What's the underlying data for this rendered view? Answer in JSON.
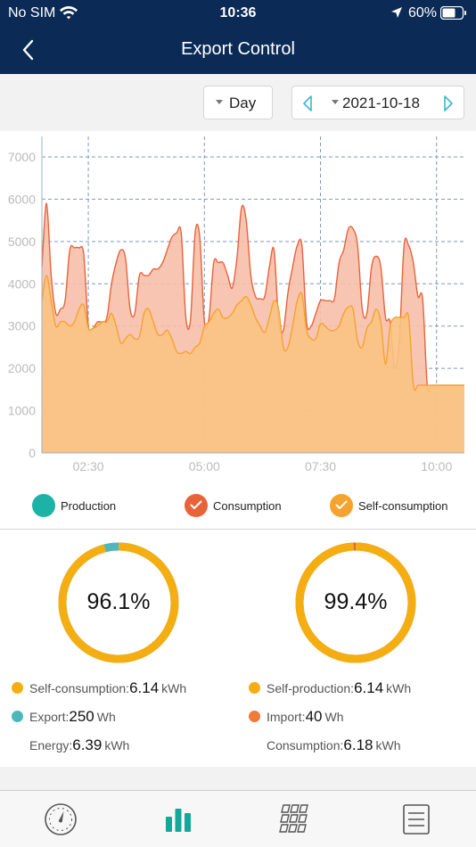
{
  "status_bar": {
    "carrier": "No SIM",
    "time": "10:36",
    "battery": "60%"
  },
  "nav": {
    "title": "Export Control"
  },
  "controls": {
    "period": "Day",
    "date": "2021-10-18"
  },
  "chart_data": {
    "type": "area",
    "x_ticks": [
      "02:30",
      "05:00",
      "07:30",
      "10:00"
    ],
    "y_ticks": [
      "0",
      "1000",
      "2000",
      "3000",
      "4000",
      "5000",
      "6000",
      "7000"
    ],
    "ylim": [
      0,
      7400
    ],
    "xlim": [
      1.5,
      10.6
    ],
    "grid": true,
    "legend_position": "bottom",
    "x": [
      1.5,
      1.6,
      1.7,
      1.8,
      1.9,
      2.0,
      2.1,
      2.2,
      2.3,
      2.4,
      2.5,
      2.6,
      2.7,
      2.8,
      2.9,
      3.0,
      3.1,
      3.2,
      3.3,
      3.4,
      3.5,
      3.6,
      3.7,
      3.8,
      3.9,
      4.0,
      4.1,
      4.2,
      4.3,
      4.4,
      4.5,
      4.6,
      4.7,
      4.8,
      4.9,
      5.0,
      5.1,
      5.2,
      5.3,
      5.4,
      5.5,
      5.6,
      5.7,
      5.8,
      5.9,
      6.0,
      6.1,
      6.2,
      6.3,
      6.4,
      6.5,
      6.6,
      6.7,
      6.8,
      6.9,
      7.0,
      7.1,
      7.2,
      7.3,
      7.4,
      7.5,
      7.6,
      7.7,
      7.8,
      7.9,
      8.0,
      8.1,
      8.2,
      8.3,
      8.4,
      8.5,
      8.6,
      8.7,
      8.8,
      8.9,
      9.0,
      9.1,
      9.2,
      9.3,
      9.4,
      9.5,
      9.6,
      9.7,
      9.8,
      9.9,
      10.0,
      10.1,
      10.2,
      10.3,
      10.4,
      10.5,
      10.6
    ],
    "series": [
      {
        "name": "Consumption",
        "color": "#e8633a",
        "values": [
          4400,
          5900,
          4200,
          3300,
          3400,
          3600,
          4800,
          4850,
          4850,
          4700,
          3000,
          2950,
          3100,
          3100,
          3200,
          4000,
          4500,
          4800,
          4600,
          3400,
          3300,
          4200,
          4200,
          4200,
          4350,
          4350,
          4500,
          4800,
          5100,
          5200,
          5200,
          3200,
          3150,
          5200,
          5100,
          3100,
          3200,
          4500,
          4500,
          4500,
          4200,
          3900,
          4600,
          5800,
          5500,
          4200,
          3700,
          3650,
          3700,
          4400,
          4800,
          3100,
          2900,
          3800,
          4400,
          4900,
          4900,
          3100,
          3000,
          3300,
          3600,
          3600,
          3600,
          3650,
          4500,
          4800,
          5300,
          5300,
          4900,
          3400,
          3300,
          4400,
          4650,
          4400,
          3200,
          3100,
          2000,
          2700,
          4900,
          4900,
          4500,
          3700,
          3650,
          1600,
          1600,
          1600,
          1600,
          1600,
          1600,
          1600,
          1600,
          1600
        ]
      },
      {
        "name": "Self-consumption",
        "color": "#f5a32e",
        "values": [
          3600,
          4200,
          3600,
          3000,
          3100,
          3100,
          3000,
          3100,
          3400,
          3500,
          2950,
          2950,
          3000,
          3100,
          3100,
          3300,
          3000,
          2600,
          2700,
          2800,
          2700,
          2750,
          3300,
          3400,
          3100,
          2800,
          2800,
          2900,
          2700,
          2400,
          2350,
          2400,
          2350,
          2500,
          2600,
          3000,
          3100,
          3300,
          3400,
          3200,
          3200,
          3300,
          3500,
          3600,
          3700,
          3500,
          3200,
          3000,
          2850,
          3200,
          3600,
          3400,
          2500,
          2500,
          3000,
          3600,
          3750,
          2900,
          2700,
          2700,
          3050,
          3000,
          2900,
          2900,
          3000,
          3300,
          3450,
          3400,
          2650,
          2500,
          2950,
          3100,
          3400,
          3100,
          2100,
          3000,
          3200,
          3200,
          3200,
          3200,
          1600,
          1600,
          1600,
          1600,
          1600,
          1600,
          1600,
          1600,
          1600,
          1600,
          1600,
          1600
        ]
      }
    ]
  },
  "legend": {
    "production": {
      "label": "Production",
      "color": "#1cb3a6"
    },
    "consumption": {
      "label": "Consumption",
      "color": "#e8633a"
    },
    "self_consumption": {
      "label": "Self-consumption",
      "color": "#f5a32e"
    }
  },
  "left_stats": {
    "percent": "96.1%",
    "ring_fraction": 0.961,
    "ring_color": "#f4ae12",
    "remainder_color": "#4cb8bc",
    "self_consumption": {
      "label": "Self-consumption:",
      "value": "6.14",
      "unit": "kWh",
      "color": "#f4ae12"
    },
    "export": {
      "label": "Export:",
      "value": "250",
      "unit": "Wh",
      "color": "#4cb8bc"
    },
    "energy": {
      "label": "Energy:",
      "value": "6.39",
      "unit": "kWh"
    }
  },
  "right_stats": {
    "percent": "99.4%",
    "ring_fraction": 0.994,
    "ring_color": "#f4ae12",
    "remainder_color": "#e8633a",
    "self_production": {
      "label": "Self-production:",
      "value": "6.14",
      "unit": "kWh",
      "color": "#f4ae12"
    },
    "import": {
      "label": "Import:",
      "value": "40",
      "unit": "Wh",
      "color": "#f07a3c"
    },
    "consumption": {
      "label": "Consumption:",
      "value": "6.18",
      "unit": "kWh"
    }
  },
  "tabs": [
    {
      "icon": "gauge-icon",
      "active": false
    },
    {
      "icon": "bar-chart-icon",
      "active": true
    },
    {
      "icon": "grid-icon",
      "active": false
    },
    {
      "icon": "list-icon",
      "active": false
    }
  ]
}
